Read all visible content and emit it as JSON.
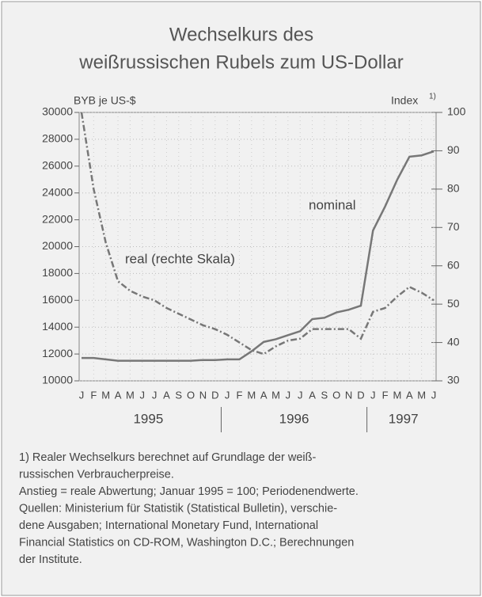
{
  "chart_data": {
    "type": "line",
    "title": [
      "Wechselkurs des",
      "weißrussischen Rubels zum US-Dollar"
    ],
    "y_label": "BYB je US-$",
    "y2_label": "Index",
    "y2_label_note": "1)",
    "categories": [
      "J",
      "F",
      "M",
      "A",
      "M",
      "J",
      "J",
      "A",
      "S",
      "O",
      "N",
      "D",
      "J",
      "F",
      "M",
      "A",
      "M",
      "J",
      "J",
      "A",
      "S",
      "O",
      "N",
      "D",
      "J",
      "F",
      "M",
      "A",
      "M",
      "J"
    ],
    "years": [
      "1995",
      "1996",
      "1997"
    ],
    "series": [
      {
        "name": "nominal",
        "color": "#777777",
        "values": [
          11700,
          11700,
          11600,
          11500,
          11500,
          11500,
          11500,
          11500,
          11500,
          11500,
          11550,
          11550,
          11600,
          11600,
          12200,
          12900,
          13100,
          13400,
          13700,
          14600,
          14700,
          15100,
          15300,
          15600,
          21200,
          23000,
          25000,
          26700,
          26800,
          27100
        ]
      },
      {
        "name": "real (rechte Skala)",
        "color": "#777777",
        "axis": "y2",
        "values": [
          100,
          80,
          66,
          56,
          53.5,
          52,
          51,
          49,
          47.5,
          46,
          44.5,
          43.5,
          42,
          40,
          38,
          37,
          39,
          40.5,
          41,
          43.5,
          43.5,
          43.5,
          43.5,
          41,
          48,
          49,
          52,
          54.5,
          53,
          51
        ]
      }
    ],
    "ylim": [
      10000,
      30000
    ],
    "yticks": [
      10000,
      12000,
      14000,
      16000,
      18000,
      20000,
      22000,
      24000,
      26000,
      28000,
      30000
    ],
    "y2lim": [
      30,
      100
    ],
    "y2ticks": [
      30,
      40,
      50,
      60,
      70,
      80,
      90,
      100
    ],
    "grid": true,
    "footnotes": [
      "1) Realer Wechselkurs berechnet auf Grundlage der weiß-",
      "russischen Verbraucherpreise.",
      "Anstieg = reale Abwertung; Januar 1995 = 100; Periodenendwerte.",
      "Quellen: Ministerium für Statistik (Statistical Bulletin), verschie-",
      "dene Ausgaben; International Monetary Fund, International",
      "Financial Statistics on CD-ROM, Washington D.C.; Berechnungen",
      "der Institute."
    ]
  }
}
